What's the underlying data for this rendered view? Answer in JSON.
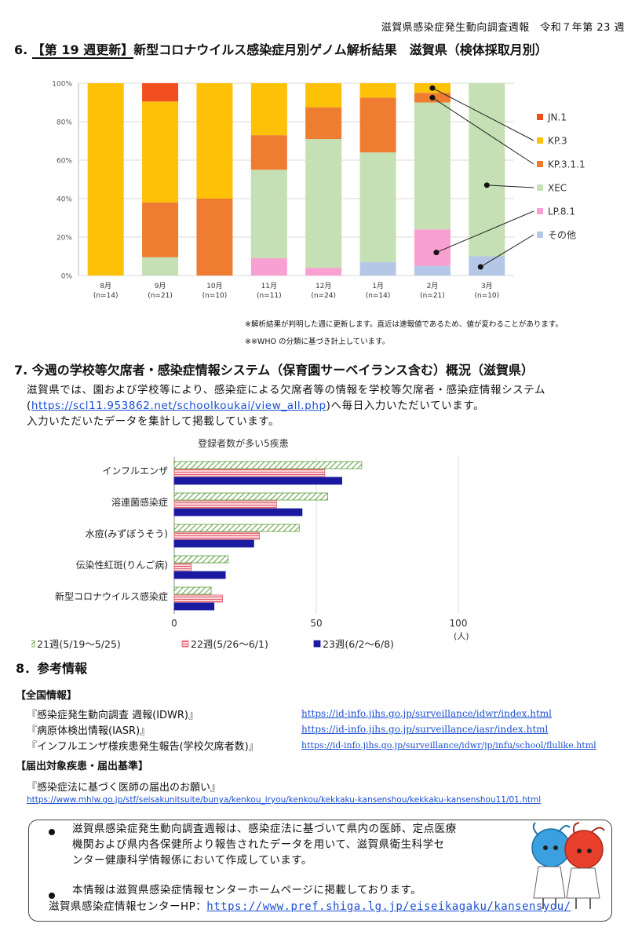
{
  "header": {
    "right": "滋賀県感染症発生動向調査週報　令和７年第 23 週"
  },
  "section6": {
    "num": "6.",
    "tag": "【第 19 週更新】",
    "title": "新型コロナウイルス感染症月別ゲノム解析結果　滋賀県（検体採取月別）",
    "notes": [
      "※解析結果が判明した週に更新します。直近は速報値であるため、値が変わることがあります。",
      "※※WHO の分類に基づき計上しています。"
    ]
  },
  "colors": {
    "JN1": "#f04e1e",
    "KP3": "#fdc107",
    "KP311": "#ee7d31",
    "XEC": "#c5e0b4",
    "LP81": "#f99fd1",
    "other": "#b4c7e7",
    "w21": "#5a9e3a",
    "w22": "#e06070",
    "w23": "#1a1aa0",
    "link": "#1a4fd1"
  },
  "chart_data": [
    {
      "type": "bar",
      "stacked": true,
      "categories": [
        "8月",
        "9月",
        "10月",
        "11月",
        "12月",
        "1月",
        "2月",
        "3月"
      ],
      "n_labels": [
        "(n=14)",
        "(n=21)",
        "(n=10)",
        "(n=11)",
        "(n=24)",
        "(n=14)",
        "(n=21)",
        "(n=10)"
      ],
      "ylim": [
        0,
        100
      ],
      "yticks": [
        "0%",
        "20%",
        "40%",
        "60%",
        "80%",
        "100%"
      ],
      "series": [
        {
          "name": "その他",
          "key": "other",
          "values": [
            0,
            0,
            0,
            0,
            0,
            7,
            5,
            10
          ]
        },
        {
          "name": "LP.8.1",
          "key": "LP81",
          "values": [
            0,
            0,
            0,
            9,
            4,
            0,
            19,
            0
          ]
        },
        {
          "name": "XEC",
          "key": "XEC",
          "values": [
            0,
            9.5,
            0,
            46,
            67,
            57,
            66,
            90
          ]
        },
        {
          "name": "KP.3.1.1",
          "key": "KP311",
          "values": [
            0,
            28.5,
            40,
            18,
            16.5,
            28.5,
            5,
            0
          ]
        },
        {
          "name": "KP.3",
          "key": "KP3",
          "values": [
            100,
            52.5,
            60,
            27,
            12.5,
            7.5,
            5,
            0
          ]
        },
        {
          "name": "JN.1",
          "key": "JN1",
          "values": [
            0,
            9.5,
            0,
            0,
            0,
            0,
            0,
            0
          ]
        }
      ],
      "legend_order": [
        "JN.1",
        "KP.3",
        "KP.3.1.1",
        "XEC",
        "LP.8.1",
        "その他"
      ]
    },
    {
      "type": "bar",
      "orientation": "horizontal",
      "title": "登録者数が多い5疾患",
      "categories": [
        "インフルエンザ",
        "溶連菌感染症",
        "水痘(みずぼうそう)",
        "伝染性紅斑(りんご病)",
        "新型コロナウイルス感染症"
      ],
      "xlim": [
        0,
        100
      ],
      "xticks": [
        "0",
        "50",
        "100"
      ],
      "xunit": "(人)",
      "series": [
        {
          "name": "21週(5/19～5/25)",
          "key": "w21",
          "values": [
            66,
            54,
            44,
            19,
            13
          ]
        },
        {
          "name": "22週(5/26～6/1)",
          "key": "w22",
          "values": [
            53,
            36,
            30,
            6,
            17
          ]
        },
        {
          "name": "23週(6/2～6/8)",
          "key": "w23",
          "values": [
            59,
            45,
            28,
            18,
            14
          ]
        }
      ]
    }
  ],
  "section7": {
    "title": "7. 今週の学校等欠席者・感染症情報システム（保育園サーベイランス含む）概況（滋賀県）",
    "line1": "滋賀県では、園および学校等により、感染症による欠席者等の情報を学校等欠席者・感染症情報システム",
    "line2_open": "(",
    "line2_link": "https://scl11.953862.net/schoolkoukai/view_all.php",
    "line2_rest": ")へ毎日入力いただいています。",
    "line3": "入力いただいたデータを集計して掲載しています。"
  },
  "section8": {
    "title": "8．参考情報",
    "national_header": "【全国情報】",
    "refs": [
      {
        "label": "『感染症発生動向調査 週報(IDWR)』",
        "url": "https://id-info.jihs.go.jp/surveillance/idwr/index.html"
      },
      {
        "label": "『病原体検出情報(IASR)』",
        "url": "https://id-info.jihs.go.jp/surveillance/iasr/index.html"
      },
      {
        "label": "『インフルエンザ様疾患発生報告(学校欠席者数)』",
        "url": "https://id-info.jihs.go.jp/surveillance/idwr/jp/infu/school/flulike.html"
      }
    ],
    "report_header": "【届出対象疾患・届出基準】",
    "report_label": "『感染症法に基づく医師の届出のお願い』",
    "report_url": "https://www.mhlw.go.jp/stf/seisakunitsuite/bunya/kenkou_iryou/kenkou/kekkaku-kansenshou/kekkaku-kansenshou11/01.html"
  },
  "infobox": {
    "b1_l1": "滋賀県感染症発生動向調査週報は、感染症法に基づいて県内の医師、定点医療",
    "b1_l2": "機関および県内各保健所より報告されたデータを用いて、滋賀県衛生科学セ",
    "b1_l3": "ンター健康科学情報係において作成しています。",
    "b2": "本情報は滋賀県感染症情報センターホームページに掲載しております。",
    "hp_label": "滋賀県感染症情報センターHP：",
    "hp_url": "https://www.pref.shiga.lg.jp/eiseikagaku/kansensyou/"
  }
}
